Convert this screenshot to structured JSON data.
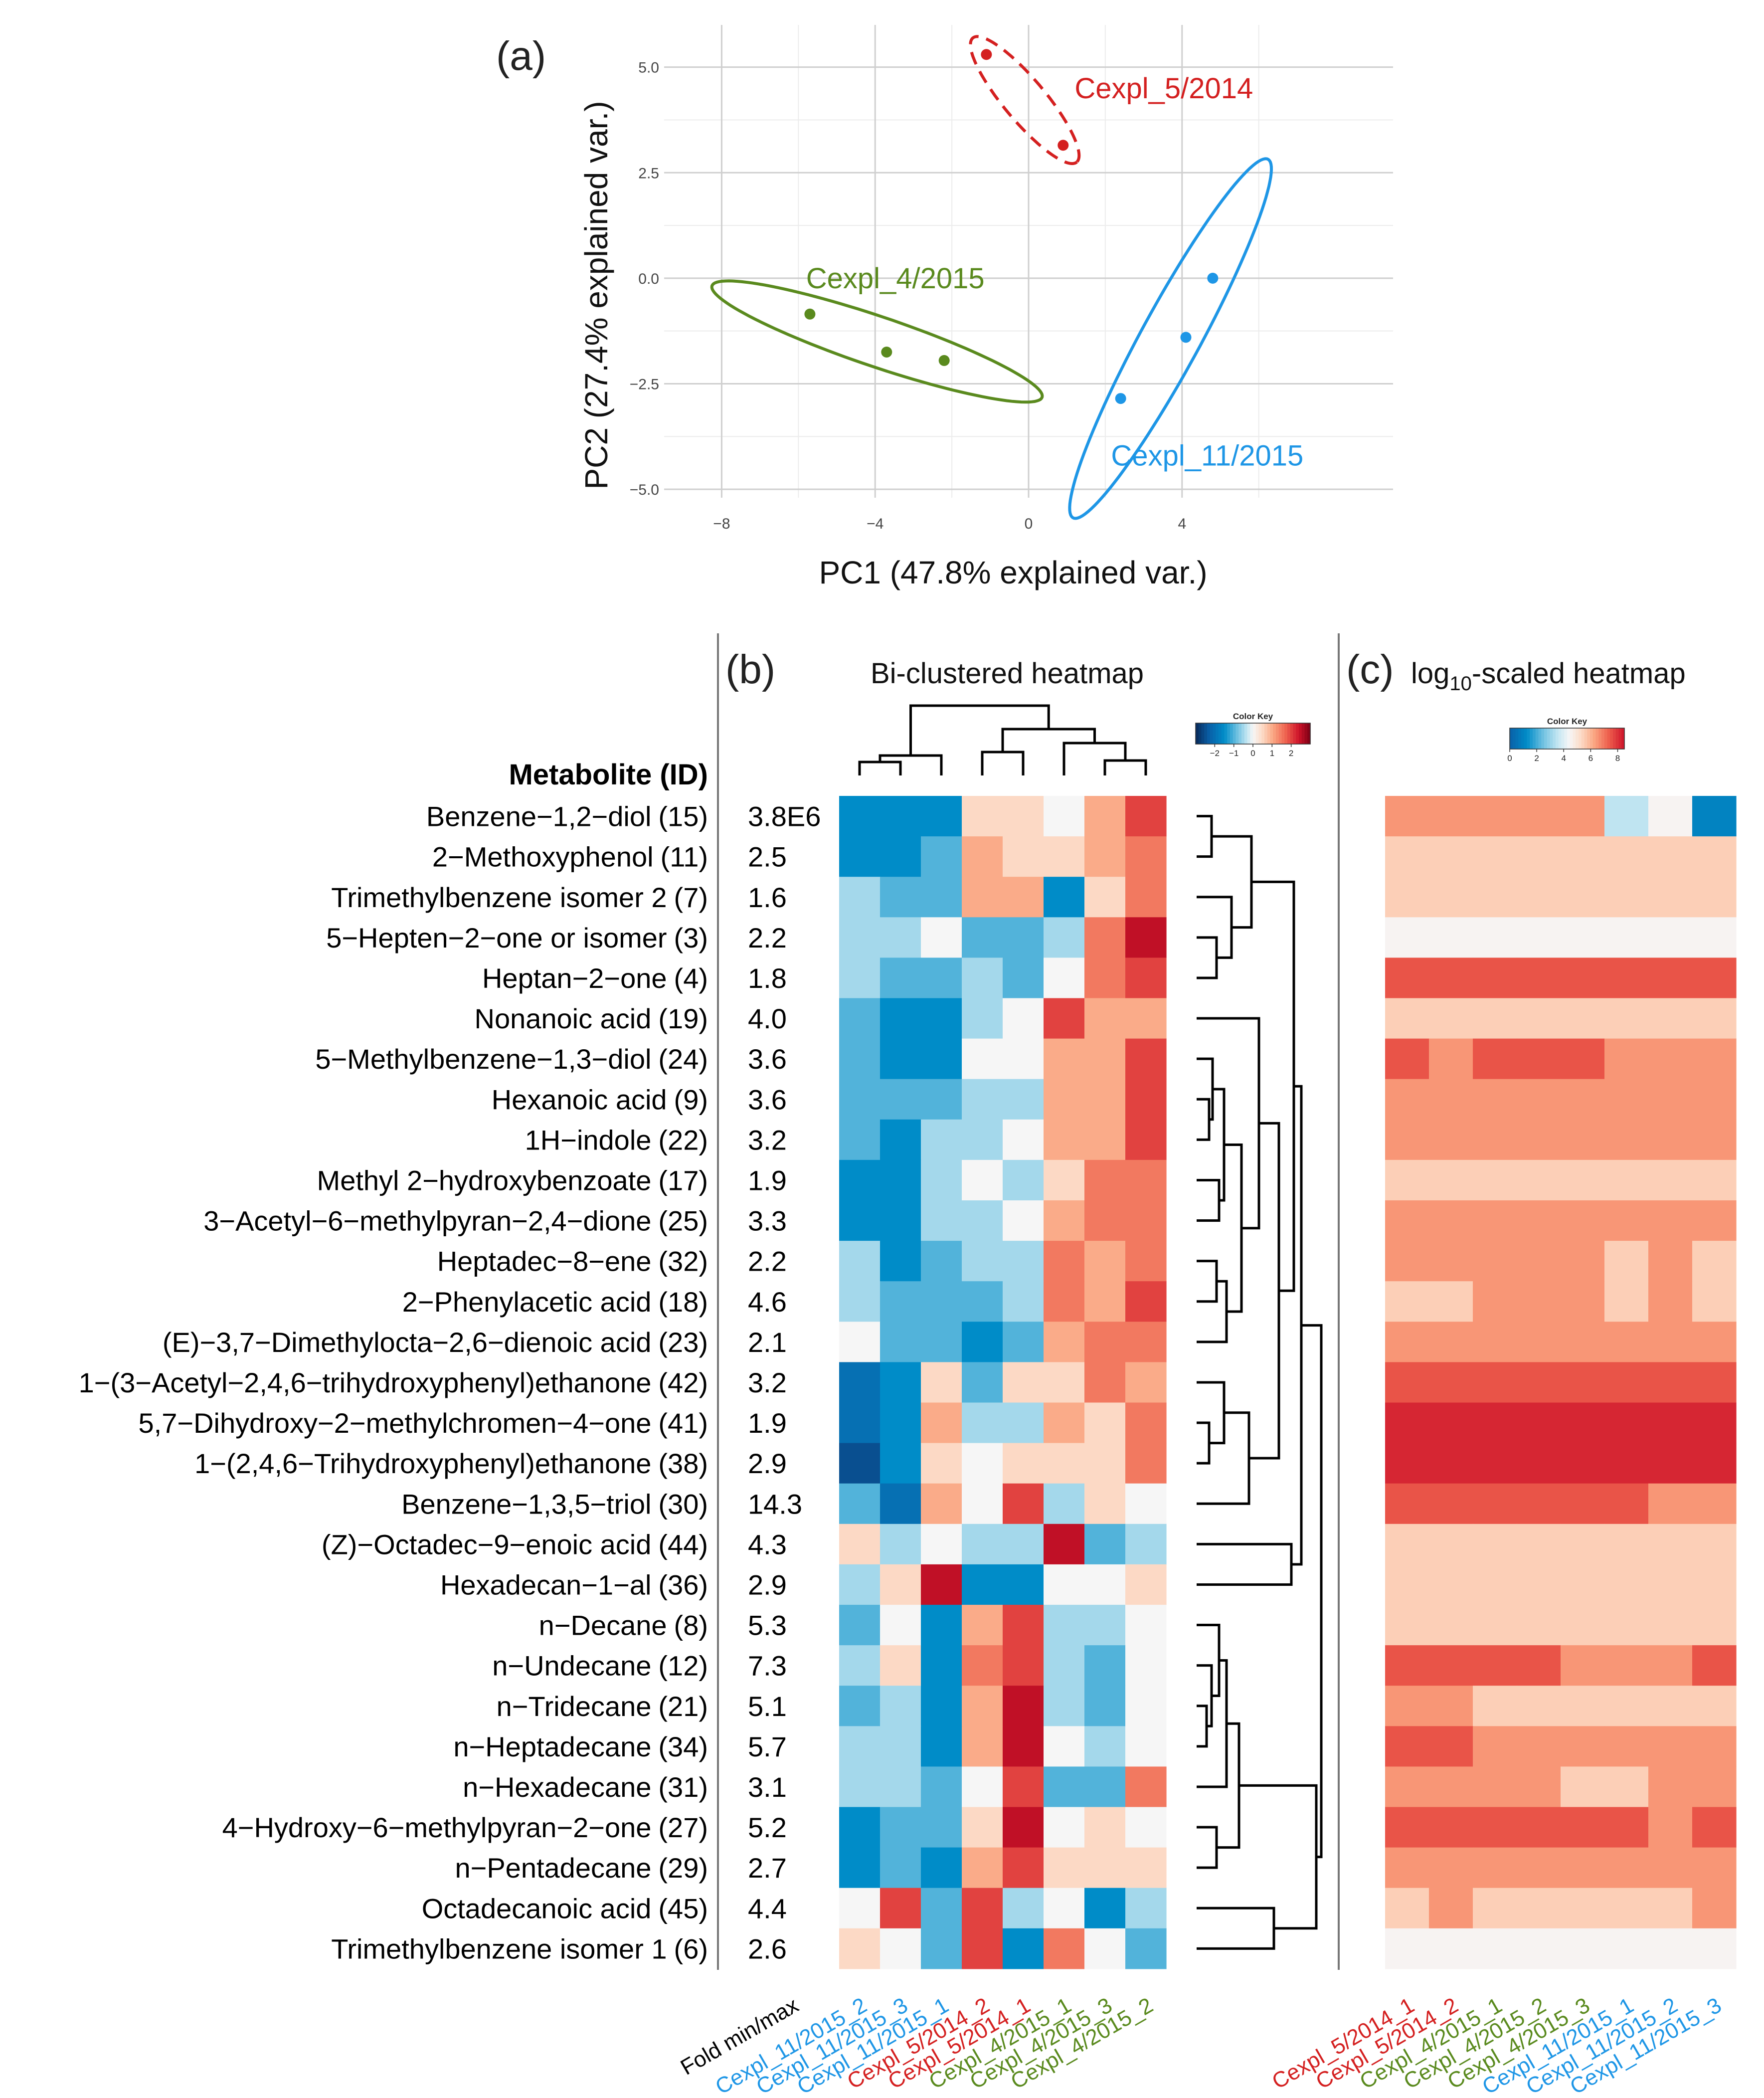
{
  "chart_data": [
    {
      "type": "scatter",
      "panel_label": "(a)",
      "xlabel": "PC1 (47.8% explained var.)",
      "ylabel": "PC2 (27.4% explained var.)",
      "xlim": [
        -9.5,
        9.5
      ],
      "ylim": [
        -5.2,
        6.0
      ],
      "xticks": [
        -8,
        -4,
        0,
        4
      ],
      "xtick_labels": [
        "−8",
        "−4",
        "0",
        "4"
      ],
      "yticks": [
        -5.0,
        -2.5,
        0.0,
        2.5,
        5.0
      ],
      "ytick_labels": [
        "−5.0",
        "−2.5",
        "0.0",
        "2.5",
        "5.0"
      ],
      "grid": true,
      "series": [
        {
          "name": "Cexpl_5/2014",
          "color": "#d42020",
          "ellipse_style": "dashed",
          "x": [
            -1.1,
            0.9
          ],
          "y": [
            5.3,
            3.15
          ],
          "ellipse": {
            "center": [
              -0.1,
              4.22
            ],
            "semi_major": 2.0,
            "semi_minor": 0.52,
            "angle_deg": -47
          },
          "label_at": [
            1.2,
            4.5
          ]
        },
        {
          "name": "Cexpl_4/2015",
          "color": "#5a8a1e",
          "ellipse_style": "solid",
          "x": [
            -5.7,
            -3.7,
            -2.2
          ],
          "y": [
            -0.85,
            -1.75,
            -1.95
          ],
          "ellipse": {
            "center": [
              -3.95,
              -1.5
            ],
            "semi_major": 4.5,
            "semi_minor": 0.6,
            "angle_deg": -17
          },
          "label_at": [
            -5.8,
            0.0
          ]
        },
        {
          "name": "Cexpl_11/2015",
          "color": "#1e96e6",
          "ellipse_style": "solid",
          "x": [
            2.4,
            4.1,
            4.8
          ],
          "y": [
            -2.85,
            -1.4,
            0.0
          ],
          "ellipse": {
            "center": [
              3.7,
              -1.43
            ],
            "semi_major": 4.95,
            "semi_minor": 0.75,
            "angle_deg": 59
          },
          "label_at": [
            2.15,
            -4.2
          ]
        }
      ]
    },
    {
      "type": "heatmap",
      "panel_label": "(b)",
      "title": "Bi-clustered heatmap",
      "row_header": "Metabolite (ID)",
      "fold_header": "Fold min/max",
      "color_key": {
        "title": "Color Key",
        "ticks": [
          -2,
          -1,
          0,
          1,
          2
        ],
        "tick_labels": [
          "−2",
          "−1",
          "0",
          "1",
          "2"
        ]
      },
      "rows": [
        {
          "name": "Benzene−1,2−diol",
          "id": "(15)",
          "fold": "3.8E6"
        },
        {
          "name": "2−Methoxyphenol",
          "id": "(11)",
          "fold": "2.5"
        },
        {
          "name": "Trimethylbenzene isomer 2",
          "id": "(7)",
          "fold": "1.6"
        },
        {
          "name": "5−Hepten−2−one or isomer",
          "id": "(3)",
          "fold": "2.2"
        },
        {
          "name": "Heptan−2−one",
          "id": "(4)",
          "fold": "1.8"
        },
        {
          "name": "Nonanoic acid",
          "id": "(19)",
          "fold": "4.0"
        },
        {
          "name": "5−Methylbenzene−1,3−diol",
          "id": "(24)",
          "fold": "3.6"
        },
        {
          "name": "Hexanoic acid",
          "id": "(9)",
          "fold": "3.6"
        },
        {
          "name": "1H−indole",
          "id": "(22)",
          "fold": "3.2"
        },
        {
          "name": "Methyl 2−hydroxybenzoate",
          "id": "(17)",
          "fold": "1.9"
        },
        {
          "name": "3−Acetyl−6−methylpyran−2,4−dione",
          "id": "(25)",
          "fold": "3.3"
        },
        {
          "name": "Heptadec−8−ene",
          "id": "(32)",
          "fold": "2.2"
        },
        {
          "name": "2−Phenylacetic acid",
          "id": "(18)",
          "fold": "4.6"
        },
        {
          "name": "(E)−3,7−Dimethylocta−2,6−dienoic acid",
          "id": "(23)",
          "fold": "2.1"
        },
        {
          "name": "1−(3−Acetyl−2,4,6−trihydroxyphenyl)ethanone",
          "id": "(42)",
          "fold": "3.2"
        },
        {
          "name": "5,7−Dihydroxy−2−methylchromen−4−one",
          "id": "(41)",
          "fold": "1.9"
        },
        {
          "name": "1−(2,4,6−Trihydroxyphenyl)ethanone",
          "id": "(38)",
          "fold": "2.9"
        },
        {
          "name": "Benzene−1,3,5−triol",
          "id": "(30)",
          "fold": "14.3"
        },
        {
          "name": "(Z)−Octadec−9−enoic acid",
          "id": "(44)",
          "fold": "4.3"
        },
        {
          "name": "Hexadecan−1−al",
          "id": "(36)",
          "fold": "2.9"
        },
        {
          "name": "n−Decane",
          "id": "(8)",
          "fold": "5.3"
        },
        {
          "name": "n−Undecane",
          "id": "(12)",
          "fold": "7.3"
        },
        {
          "name": "n−Tridecane",
          "id": "(21)",
          "fold": "5.1"
        },
        {
          "name": "n−Heptadecane",
          "id": "(34)",
          "fold": "5.7"
        },
        {
          "name": "n−Hexadecane",
          "id": "(31)",
          "fold": "3.1"
        },
        {
          "name": "4−Hydroxy−6−methylpyran−2−one",
          "id": "(27)",
          "fold": "5.2"
        },
        {
          "name": "n−Pentadecane",
          "id": "(29)",
          "fold": "2.7"
        },
        {
          "name": "Octadecanoic acid",
          "id": "(45)",
          "fold": "4.4"
        },
        {
          "name": "Trimethylbenzene isomer 1",
          "id": "(6)",
          "fold": "2.6"
        }
      ],
      "columns": [
        {
          "name": "Cexpl_11/2015_2",
          "color": "#1e96e6"
        },
        {
          "name": "Cexpl_11/2015_3",
          "color": "#1e96e6"
        },
        {
          "name": "Cexpl_11/2015_1",
          "color": "#1e96e6"
        },
        {
          "name": "Cexpl_5/2014_2",
          "color": "#d42020"
        },
        {
          "name": "Cexpl_5/2014_1",
          "color": "#d42020"
        },
        {
          "name": "Cexpl_4/2015_1",
          "color": "#5a8a1e"
        },
        {
          "name": "Cexpl_4/2015_3",
          "color": "#5a8a1e"
        },
        {
          "name": "Cexpl_4/2015_2",
          "color": "#5a8a1e"
        }
      ],
      "values": [
        [
          -1.5,
          -1.5,
          -1.5,
          0.5,
          0.5,
          0.0,
          1.0,
          2.0
        ],
        [
          -1.5,
          -1.5,
          -1.0,
          1.0,
          0.5,
          0.5,
          1.0,
          1.5
        ],
        [
          -0.5,
          -1.0,
          -1.0,
          1.0,
          1.0,
          -1.5,
          0.5,
          1.5
        ],
        [
          -0.5,
          -0.5,
          0.0,
          -1.0,
          -1.0,
          -0.5,
          1.5,
          2.5
        ],
        [
          -0.5,
          -1.0,
          -1.0,
          -0.5,
          -1.0,
          0.0,
          1.5,
          2.0
        ],
        [
          -1.0,
          -1.5,
          -1.5,
          -0.5,
          0.0,
          2.0,
          1.0,
          1.0
        ],
        [
          -1.0,
          -1.5,
          -1.5,
          0.0,
          0.0,
          1.0,
          1.0,
          2.0
        ],
        [
          -1.0,
          -1.0,
          -1.0,
          -0.5,
          -0.5,
          1.0,
          1.0,
          2.0
        ],
        [
          -1.0,
          -1.5,
          -0.5,
          -0.5,
          0.0,
          1.0,
          1.0,
          2.0
        ],
        [
          -1.5,
          -1.5,
          -0.5,
          0.0,
          -0.5,
          0.5,
          1.5,
          1.5
        ],
        [
          -1.5,
          -1.5,
          -0.5,
          -0.5,
          0.0,
          1.0,
          1.5,
          1.5
        ],
        [
          -0.5,
          -1.5,
          -1.0,
          -0.5,
          -0.5,
          1.5,
          1.0,
          1.5
        ],
        [
          -0.5,
          -1.0,
          -1.0,
          -1.0,
          -0.5,
          1.5,
          1.0,
          2.0
        ],
        [
          0.0,
          -1.0,
          -1.0,
          -1.5,
          -1.0,
          1.0,
          1.5,
          1.5
        ],
        [
          -2.0,
          -1.5,
          0.5,
          -1.0,
          0.5,
          0.5,
          1.5,
          1.0
        ],
        [
          -2.0,
          -1.5,
          1.0,
          -0.5,
          -0.5,
          1.0,
          0.5,
          1.5
        ],
        [
          -2.5,
          -1.5,
          0.5,
          0.0,
          0.5,
          0.5,
          0.5,
          1.5
        ],
        [
          -1.0,
          -2.0,
          1.0,
          0.0,
          2.0,
          -0.5,
          0.5,
          0.0
        ],
        [
          0.5,
          -0.5,
          0.0,
          -0.5,
          -0.5,
          2.5,
          -1.0,
          -0.5
        ],
        [
          -0.5,
          0.5,
          2.5,
          -1.5,
          -1.5,
          0.0,
          0.0,
          0.5
        ],
        [
          -1.0,
          0.0,
          -1.5,
          1.0,
          2.0,
          -0.5,
          -0.5,
          0.0
        ],
        [
          -0.5,
          0.5,
          -1.5,
          1.5,
          2.0,
          -0.5,
          -1.0,
          0.0
        ],
        [
          -1.0,
          -0.5,
          -1.5,
          1.0,
          2.5,
          -0.5,
          -1.0,
          0.0
        ],
        [
          -0.5,
          -0.5,
          -1.5,
          1.0,
          2.5,
          0.0,
          -0.5,
          0.0
        ],
        [
          -0.5,
          -0.5,
          -1.0,
          0.0,
          2.0,
          -1.0,
          -1.0,
          1.5
        ],
        [
          -1.5,
          -1.0,
          -1.0,
          0.5,
          2.5,
          0.0,
          0.5,
          0.0
        ],
        [
          -1.5,
          -1.0,
          -1.5,
          1.0,
          2.0,
          0.5,
          0.5,
          0.5
        ],
        [
          0.0,
          2.0,
          -1.0,
          2.0,
          -0.5,
          0.0,
          -1.5,
          -0.5
        ],
        [
          0.5,
          0.0,
          -1.0,
          2.0,
          -1.5,
          1.5,
          0.0,
          -1.0
        ]
      ]
    },
    {
      "type": "heatmap",
      "panel_label": "(c)",
      "title_prefix": "log",
      "title_subscript": "10",
      "title_suffix": "-scaled heatmap",
      "color_key": {
        "title": "Color Key",
        "ticks": [
          0,
          2,
          4,
          6,
          8
        ],
        "tick_labels": [
          "0",
          "2",
          "4",
          "6",
          "8"
        ]
      },
      "columns": [
        {
          "name": "Cexpl_5/2014_1",
          "color": "#d42020"
        },
        {
          "name": "Cexpl_5/2014_2",
          "color": "#d42020"
        },
        {
          "name": "Cexpl_4/2015_1",
          "color": "#5a8a1e"
        },
        {
          "name": "Cexpl_4/2015_2",
          "color": "#5a8a1e"
        },
        {
          "name": "Cexpl_4/2015_3",
          "color": "#5a8a1e"
        },
        {
          "name": "Cexpl_11/2015_1",
          "color": "#1e96e6"
        },
        {
          "name": "Cexpl_11/2015_2",
          "color": "#1e96e6"
        },
        {
          "name": "Cexpl_11/2015_3",
          "color": "#1e96e6"
        }
      ],
      "values": [
        [
          6.5,
          6.5,
          6.5,
          6.5,
          6.5,
          3.5,
          4.5,
          1.0
        ],
        [
          5.5,
          5.5,
          5.5,
          5.5,
          5.5,
          5.5,
          5.5,
          5.5
        ],
        [
          5.5,
          5.5,
          5.5,
          5.5,
          5.5,
          5.5,
          5.5,
          5.5
        ],
        [
          4.5,
          4.5,
          4.5,
          4.5,
          4.5,
          4.5,
          4.5,
          4.5
        ],
        [
          7.5,
          7.5,
          7.5,
          7.5,
          7.5,
          7.5,
          7.5,
          7.5
        ],
        [
          5.5,
          5.5,
          5.5,
          5.5,
          5.5,
          5.5,
          5.5,
          5.5
        ],
        [
          7.5,
          6.5,
          7.5,
          7.5,
          7.5,
          6.5,
          6.5,
          6.5
        ],
        [
          6.5,
          6.5,
          6.5,
          6.5,
          6.5,
          6.5,
          6.5,
          6.5
        ],
        [
          6.5,
          6.5,
          6.5,
          6.5,
          6.5,
          6.5,
          6.5,
          6.5
        ],
        [
          5.5,
          5.5,
          5.5,
          5.5,
          5.5,
          5.5,
          5.5,
          5.5
        ],
        [
          6.5,
          6.5,
          6.5,
          6.5,
          6.5,
          6.5,
          6.5,
          6.5
        ],
        [
          6.5,
          6.5,
          6.5,
          6.5,
          6.5,
          5.5,
          6.5,
          5.5
        ],
        [
          5.5,
          5.5,
          6.5,
          6.5,
          6.5,
          5.5,
          6.5,
          5.5
        ],
        [
          6.5,
          6.5,
          6.5,
          6.5,
          6.5,
          6.5,
          6.5,
          6.5
        ],
        [
          7.5,
          7.5,
          7.5,
          7.5,
          7.5,
          7.5,
          7.5,
          7.5
        ],
        [
          8.2,
          8.2,
          8.2,
          8.2,
          8.2,
          8.2,
          8.2,
          8.2
        ],
        [
          8.2,
          8.2,
          8.2,
          8.2,
          8.2,
          8.2,
          8.2,
          8.2
        ],
        [
          7.5,
          7.5,
          7.5,
          7.5,
          7.5,
          7.5,
          6.5,
          6.5
        ],
        [
          5.5,
          5.5,
          5.5,
          5.5,
          5.5,
          5.5,
          5.5,
          5.5
        ],
        [
          5.5,
          5.5,
          5.5,
          5.5,
          5.5,
          5.5,
          5.5,
          5.5
        ],
        [
          5.5,
          5.5,
          5.5,
          5.5,
          5.5,
          5.5,
          5.5,
          5.5
        ],
        [
          7.5,
          7.5,
          7.5,
          7.5,
          6.5,
          6.5,
          6.5,
          7.5
        ],
        [
          6.5,
          6.5,
          5.5,
          5.5,
          5.5,
          5.5,
          5.5,
          5.5
        ],
        [
          7.5,
          7.5,
          6.5,
          6.5,
          6.5,
          6.5,
          6.5,
          6.5
        ],
        [
          6.5,
          6.5,
          6.5,
          6.5,
          5.5,
          5.5,
          6.5,
          6.5
        ],
        [
          7.5,
          7.5,
          7.5,
          7.5,
          7.5,
          7.5,
          6.5,
          7.5
        ],
        [
          6.5,
          6.5,
          6.5,
          6.5,
          6.5,
          6.5,
          6.5,
          6.5
        ],
        [
          5.5,
          6.5,
          5.5,
          5.5,
          5.5,
          5.5,
          5.5,
          6.5
        ],
        [
          4.5,
          4.5,
          4.5,
          4.5,
          4.5,
          4.5,
          4.5,
          4.5
        ]
      ]
    }
  ]
}
